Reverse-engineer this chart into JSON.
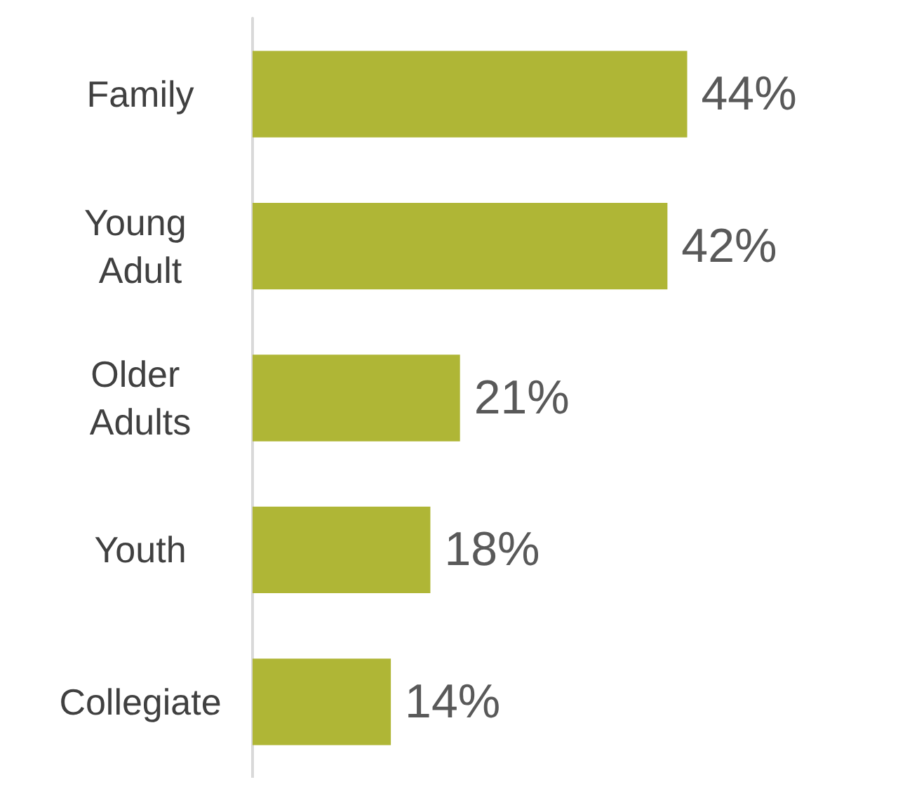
{
  "chart_data": {
    "type": "bar",
    "orientation": "horizontal",
    "categories": [
      "Family",
      "Young Adult",
      "Older Adults",
      "Youth",
      "Collegiate"
    ],
    "values": [
      44,
      42,
      21,
      18,
      14
    ],
    "value_labels": [
      "44%",
      "42%",
      "21%",
      "18%",
      "14%"
    ],
    "color": "#afb636"
  }
}
